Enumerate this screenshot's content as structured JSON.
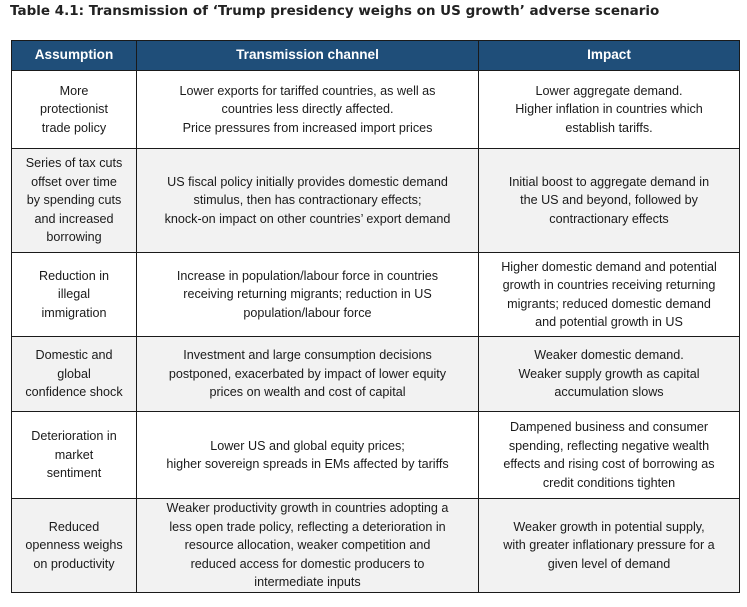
{
  "title": "Table 4.1: Transmission of ‘Trump presidency weighs on US growth’ adverse scenario",
  "headers": {
    "assumption": "Assumption",
    "channel": "Transmission channel",
    "impact": "Impact"
  },
  "rows": [
    {
      "assumption": [
        "More",
        "protectionist",
        "trade policy"
      ],
      "channel": [
        "Lower exports for tariffed countries, as well as",
        "countries less directly affected.",
        "Price pressures from increased import prices"
      ],
      "impact": [
        "Lower aggregate demand.",
        "Higher inflation in countries which",
        "establish tariffs."
      ]
    },
    {
      "assumption": [
        "Series of tax cuts",
        "offset over time",
        "by spending cuts",
        "and increased",
        "borrowing"
      ],
      "channel": [
        "US fiscal policy initially provides domestic demand",
        "stimulus, then has contractionary effects;",
        "knock-on impact on other countries’ export demand"
      ],
      "impact": [
        "Initial boost to aggregate demand in",
        "the US and beyond, followed by",
        "contractionary effects"
      ]
    },
    {
      "assumption": [
        "Reduction in",
        "illegal",
        "immigration"
      ],
      "channel": [
        "Increase in population/labour force in countries",
        "receiving returning migrants; reduction in US",
        "population/labour force"
      ],
      "impact": [
        "Higher domestic demand and potential",
        "growth in countries receiving returning",
        "migrants; reduced domestic demand",
        "and potential growth in US"
      ]
    },
    {
      "assumption": [
        "Domestic and",
        "global",
        "confidence shock"
      ],
      "channel": [
        "Investment and large consumption decisions",
        "postponed, exacerbated by impact of lower equity",
        "prices on wealth and cost of capital"
      ],
      "impact": [
        "Weaker domestic demand.",
        "Weaker supply growth as capital",
        "accumulation slows"
      ]
    },
    {
      "assumption": [
        "Deterioration in",
        "market",
        "sentiment"
      ],
      "channel": [
        "Lower US and global equity prices;",
        "higher sovereign spreads in EMs affected by tariffs"
      ],
      "impact": [
        "Dampened business and consumer",
        "spending, reflecting negative wealth",
        "effects and rising cost of borrowing as",
        "credit conditions tighten"
      ]
    },
    {
      "assumption": [
        "Reduced",
        "openness weighs",
        "on productivity"
      ],
      "channel": [
        "Weaker productivity growth in countries adopting a",
        "less open trade policy, reflecting a deterioration in",
        "resource allocation, weaker competition and",
        "reduced access for domestic producers to",
        "intermediate inputs"
      ],
      "impact": [
        "Weaker growth in potential supply,",
        "with greater inflationary pressure for a",
        "given level of demand"
      ]
    }
  ]
}
